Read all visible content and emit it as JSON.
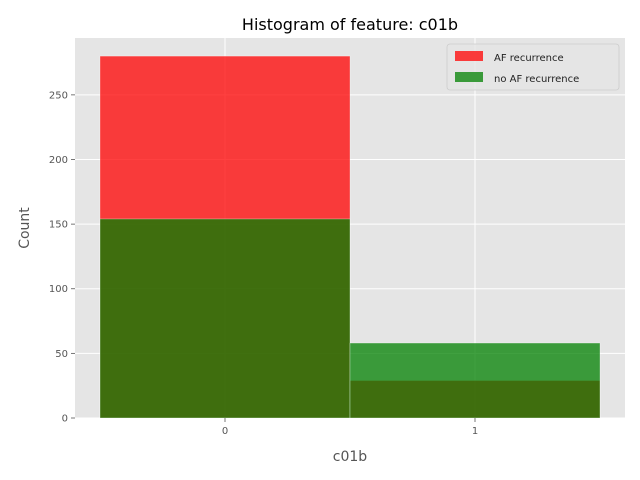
{
  "chart_data": {
    "type": "bar",
    "title": "Histogram of feature: c01b",
    "xlabel": "c01b",
    "ylabel": "Count",
    "categories": [
      "0",
      "1"
    ],
    "series": [
      {
        "name": "AF recurrence",
        "values": [
          280,
          29
        ],
        "color": "#ff0000",
        "alpha": 0.75
      },
      {
        "name": "no AF recurrence",
        "values": [
          154,
          58
        ],
        "color": "#008000",
        "alpha": 0.75
      }
    ],
    "ylim": [
      0,
      294
    ],
    "y_ticks": [
      0,
      50,
      100,
      150,
      200,
      250
    ],
    "xlim": [
      -0.6,
      1.6
    ],
    "bar_width": 1.0,
    "grid": true,
    "legend_position": "top-right",
    "background": "#e5e5e5"
  }
}
